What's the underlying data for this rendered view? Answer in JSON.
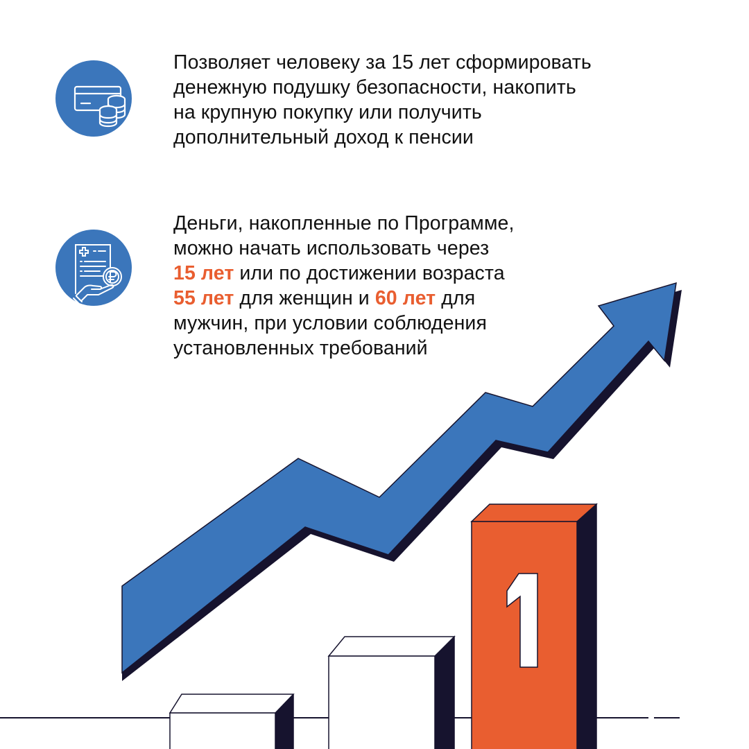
{
  "colors": {
    "blue": "#3b76bb",
    "orange": "#e95e30",
    "navy": "#16132e",
    "text": "#111111"
  },
  "items": [
    {
      "icon": "card-coins-icon",
      "lines": [
        "Позволяет человеку за 15 лет сформировать",
        "денежную подушку безопасности, накопить",
        "на крупную покупку или получить",
        "дополнительный доход к пенсии"
      ]
    },
    {
      "icon": "document-ruble-hand-icon",
      "line1": "Деньги, накопленные по Программе,",
      "line2": "можно начать использовать через",
      "line3_hl": "15 лет",
      "line3_rest": " или по достижении возраста",
      "line4_hl1": "55 лет",
      "line4_mid": " для женщин и ",
      "line4_hl2": "60 лет",
      "line4_rest": " для",
      "line5": "мужчин, при условии соблюдения",
      "line6": "установленных требований"
    }
  ],
  "illustration": {
    "rising-arrow": "growth-arrow-icon",
    "bars": 3,
    "rank_label": "1"
  }
}
